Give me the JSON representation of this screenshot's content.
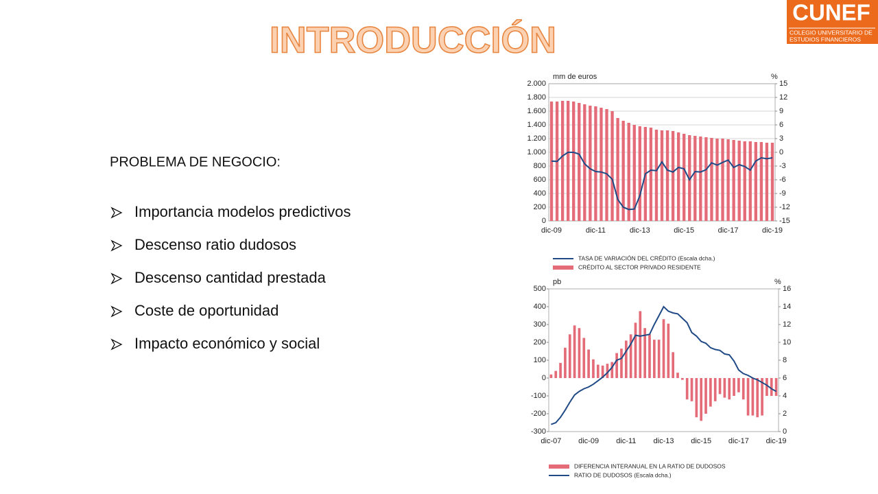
{
  "title": "INTRODUCCIÓN",
  "logo": {
    "name": "CUNEF",
    "subtitle": [
      "COLEGIO UNIVERSITARIO DE",
      "ESTUDIOS FINANCIEROS"
    ]
  },
  "section": {
    "heading": "PROBLEMA DE NEGOCIO:",
    "bullets": [
      "Importancia modelos predictivos",
      "Descenso ratio dudosos",
      "Descenso cantidad prestada",
      "Coste de oportunidad",
      "Impacto económico y social"
    ]
  },
  "chart_data": [
    {
      "type": "combo",
      "ylabel": "mm de euros",
      "y2label": "%",
      "categories": [
        "dic-09",
        null,
        null,
        null,
        null,
        null,
        null,
        null,
        "dic-11",
        null,
        null,
        null,
        null,
        null,
        null,
        null,
        "dic-13",
        null,
        null,
        null,
        null,
        null,
        null,
        null,
        "dic-15",
        null,
        null,
        null,
        null,
        null,
        null,
        null,
        "dic-17",
        null,
        null,
        null,
        null,
        null,
        null,
        null,
        "dic-19"
      ],
      "series": [
        {
          "name": "TASA DE VARIACIÓN DEL CRÉDITO (Escala dcha.)",
          "type": "line",
          "axis": "y2",
          "color": "#1f4a86",
          "values": [
            -1.9,
            -2,
            -0.8,
            0,
            0,
            -0.4,
            -2.5,
            -3.6,
            -4.2,
            -4.3,
            -4.7,
            -5.9,
            -10.3,
            -12,
            -12.5,
            -12.4,
            -9.5,
            -4.7,
            -3.9,
            -4,
            -2.1,
            -3.9,
            -4.3,
            -3.3,
            -3.6,
            -6,
            -4.2,
            -4.3,
            -3.8,
            -2.3,
            -2.8,
            -2.2,
            -1.7,
            -3.3,
            -2.7,
            -3.1,
            -3.9,
            -1.9,
            -1.2,
            -1.4,
            -1.2
          ]
        },
        {
          "name": "CRÉDITO AL SECTOR PRIVADO RESIDENTE",
          "type": "bar",
          "color": "#e46b78",
          "values": [
            1740,
            1740,
            1750,
            1750,
            1740,
            1720,
            1700,
            1680,
            1670,
            1650,
            1630,
            1600,
            1500,
            1460,
            1430,
            1400,
            1380,
            1370,
            1360,
            1330,
            1320,
            1320,
            1310,
            1290,
            1270,
            1250,
            1240,
            1230,
            1220,
            1210,
            1200,
            1200,
            1190,
            1180,
            1170,
            1160,
            1160,
            1150,
            1150,
            1140,
            1140
          ]
        }
      ],
      "ylim": [
        0,
        2000
      ],
      "yticks": [
        0,
        200,
        400,
        600,
        800,
        {
          "value": 1000,
          "label": "1.000"
        },
        {
          "value": 1200,
          "label": "1.200"
        },
        {
          "value": 1400,
          "label": "1.400"
        },
        {
          "value": 1600,
          "label": "1.600"
        },
        {
          "value": 1800,
          "label": "1.800"
        },
        {
          "value": 2000,
          "label": "2.000"
        }
      ],
      "y2lim": [
        -15,
        15
      ],
      "y2ticks": [
        -15,
        -12,
        -9,
        -6,
        -3,
        0,
        3,
        6,
        9,
        12,
        15
      ],
      "grid": true
    },
    {
      "type": "combo",
      "ylabel": "pb",
      "y2label": "%",
      "categories": [
        "dic-07",
        null,
        null,
        null,
        null,
        null,
        null,
        null,
        "dic-09",
        null,
        null,
        null,
        null,
        null,
        null,
        null,
        "dic-11",
        null,
        null,
        null,
        null,
        null,
        null,
        null,
        "dic-13",
        null,
        null,
        null,
        null,
        null,
        null,
        null,
        "dic-15",
        null,
        null,
        null,
        null,
        null,
        null,
        null,
        "dic-17",
        null,
        null,
        null,
        null,
        null,
        null,
        null,
        "dic-19"
      ],
      "series": [
        {
          "name": "DIFERENCIA INTERANUAL EN LA RATIO DE DUDOSOS",
          "type": "bar",
          "color": "#e46b78",
          "values": [
            20,
            40,
            85,
            170,
            245,
            295,
            280,
            225,
            160,
            105,
            75,
            70,
            80,
            90,
            140,
            165,
            210,
            245,
            310,
            375,
            280,
            245,
            215,
            215,
            330,
            305,
            145,
            30,
            -10,
            -120,
            -130,
            -220,
            -240,
            -200,
            -160,
            -130,
            -90,
            -110,
            -120,
            -100,
            -80,
            -120,
            -210,
            -210,
            -220,
            -210,
            -100,
            -100,
            -100
          ]
        },
        {
          "name": "RATIO DE DUDOSOS (Escala dcha.)",
          "type": "line",
          "axis": "y2",
          "color": "#1f4a86",
          "values": [
            0.8,
            1.0,
            1.6,
            2.4,
            3.3,
            4.1,
            4.5,
            4.8,
            5.0,
            5.3,
            5.7,
            6.1,
            6.6,
            7.2,
            8.0,
            8.2,
            9.0,
            9.8,
            10.8,
            10.7,
            10.8,
            10.9,
            12.0,
            13.0,
            14.0,
            13.5,
            13.3,
            13.2,
            12.7,
            12.2,
            11.1,
            10.7,
            10.1,
            9.9,
            9.4,
            9.2,
            9.1,
            8.7,
            8.6,
            7.9,
            6.9,
            6.5,
            6.3,
            6.0,
            5.8,
            5.5,
            5.2,
            4.8,
            4.5
          ]
        }
      ],
      "ylim": [
        -300,
        500
      ],
      "yticks": [
        -300,
        -200,
        -100,
        0,
        100,
        200,
        300,
        400,
        500
      ],
      "y2lim": [
        0,
        16
      ],
      "y2ticks": [
        0,
        2,
        4,
        6,
        8,
        10,
        12,
        14,
        16
      ],
      "grid": false
    }
  ]
}
